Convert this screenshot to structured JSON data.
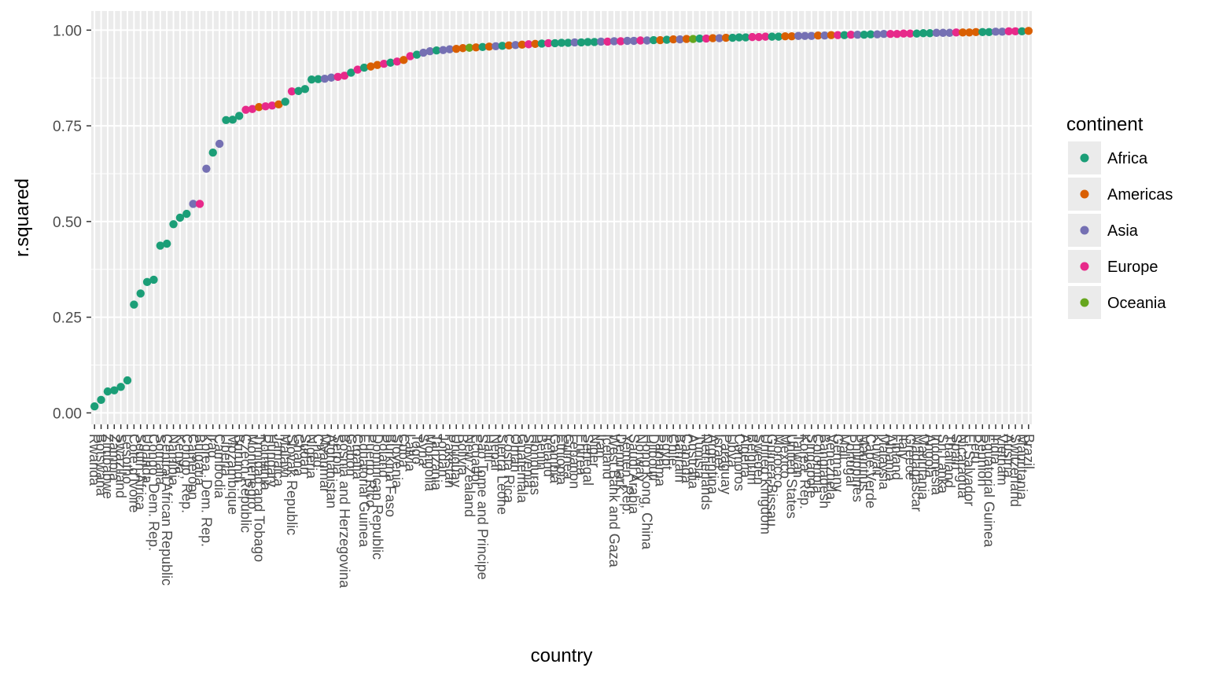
{
  "chart_data": {
    "type": "scatter",
    "xlabel": "country",
    "ylabel": "r.squared",
    "ylim": [
      -0.03,
      1.05
    ],
    "y_ticks": [
      "0.00",
      "0.25",
      "0.50",
      "0.75",
      "1.00"
    ],
    "grid": true,
    "legend": {
      "title": "continent",
      "placement": "right",
      "entries": [
        {
          "name": "Africa",
          "color": "#1b9e77"
        },
        {
          "name": "Americas",
          "color": "#d95f02"
        },
        {
          "name": "Asia",
          "color": "#7570b3"
        },
        {
          "name": "Europe",
          "color": "#e7298a"
        },
        {
          "name": "Oceania",
          "color": "#66a61e"
        }
      ]
    },
    "points": [
      {
        "country": "Rwanda",
        "continent": "Africa",
        "y": 0.017
      },
      {
        "country": "Botswana",
        "continent": "Africa",
        "y": 0.034
      },
      {
        "country": "Zimbabwe",
        "continent": "Africa",
        "y": 0.056
      },
      {
        "country": "Zambia",
        "continent": "Africa",
        "y": 0.059
      },
      {
        "country": "Swaziland",
        "continent": "Africa",
        "y": 0.068
      },
      {
        "country": "Lesotho",
        "continent": "Africa",
        "y": 0.085
      },
      {
        "country": "Cote d'Ivoire",
        "continent": "Africa",
        "y": 0.283
      },
      {
        "country": "South Africa",
        "continent": "Africa",
        "y": 0.312
      },
      {
        "country": "Uganda",
        "continent": "Africa",
        "y": 0.342
      },
      {
        "country": "Congo, Dem. Rep.",
        "continent": "Africa",
        "y": 0.348
      },
      {
        "country": "Somalia",
        "continent": "Africa",
        "y": 0.437
      },
      {
        "country": "Central African Republic",
        "continent": "Africa",
        "y": 0.442
      },
      {
        "country": "Namibia",
        "continent": "Africa",
        "y": 0.493
      },
      {
        "country": "Kenya",
        "continent": "Africa",
        "y": 0.51
      },
      {
        "country": "Congo, Rep.",
        "continent": "Africa",
        "y": 0.52
      },
      {
        "country": "Cameroon",
        "continent": "Asia",
        "y": 0.546
      },
      {
        "country": "Bulgaria",
        "continent": "Europe",
        "y": 0.546
      },
      {
        "country": "Korea, Dem. Rep.",
        "continent": "Asia",
        "y": 0.638
      },
      {
        "country": "Iraq",
        "continent": "Africa",
        "y": 0.68
      },
      {
        "country": "Cambodia",
        "continent": "Asia",
        "y": 0.703
      },
      {
        "country": "Liberia",
        "continent": "Africa",
        "y": 0.765
      },
      {
        "country": "Mozambique",
        "continent": "Africa",
        "y": 0.766
      },
      {
        "country": "Burundi",
        "continent": "Africa",
        "y": 0.776
      },
      {
        "country": "Czech Republic",
        "continent": "Europe",
        "y": 0.792
      },
      {
        "country": "Montenegro",
        "continent": "Europe",
        "y": 0.794
      },
      {
        "country": "Trinidad and Tobago",
        "continent": "Americas",
        "y": 0.799
      },
      {
        "country": "Romania",
        "continent": "Europe",
        "y": 0.801
      },
      {
        "country": "Hungary",
        "continent": "Europe",
        "y": 0.803
      },
      {
        "country": "Jamaica",
        "continent": "Americas",
        "y": 0.806
      },
      {
        "country": "Malawi",
        "continent": "Africa",
        "y": 0.813
      },
      {
        "country": "Slovak Republic",
        "continent": "Europe",
        "y": 0.84
      },
      {
        "country": "Ghana",
        "continent": "Africa",
        "y": 0.841
      },
      {
        "country": "Sudan",
        "continent": "Africa",
        "y": 0.846
      },
      {
        "country": "Nigeria",
        "continent": "Africa",
        "y": 0.871
      },
      {
        "country": "Chad",
        "continent": "Africa",
        "y": 0.872
      },
      {
        "country": "Myanmar",
        "continent": "Asia",
        "y": 0.873
      },
      {
        "country": "Afghanistan",
        "continent": "Asia",
        "y": 0.876
      },
      {
        "country": "Serbia",
        "continent": "Europe",
        "y": 0.878
      },
      {
        "country": "Bosnia and Herzegovina",
        "continent": "Europe",
        "y": 0.881
      },
      {
        "country": "Gabon",
        "continent": "Africa",
        "y": 0.889
      },
      {
        "country": "Croatia",
        "continent": "Europe",
        "y": 0.897
      },
      {
        "country": "Equatorial Guinea",
        "continent": "Africa",
        "y": 0.902
      },
      {
        "country": "Puerto Rico",
        "continent": "Americas",
        "y": 0.905
      },
      {
        "country": "Dominican Republic",
        "continent": "Americas",
        "y": 0.909
      },
      {
        "country": "Poland",
        "continent": "Europe",
        "y": 0.912
      },
      {
        "country": "Burkina Faso",
        "continent": "Africa",
        "y": 0.915
      },
      {
        "country": "Slovenia",
        "continent": "Europe",
        "y": 0.918
      },
      {
        "country": "Cuba",
        "continent": "Americas",
        "y": 0.922
      },
      {
        "country": "Latvia",
        "continent": "Europe",
        "y": 0.932
      },
      {
        "country": "Togo",
        "continent": "Africa",
        "y": 0.936
      },
      {
        "country": "Syria",
        "continent": "Asia",
        "y": 0.941
      },
      {
        "country": "Mongolia",
        "continent": "Asia",
        "y": 0.945
      },
      {
        "country": "Tanzania",
        "continent": "Africa",
        "y": 0.947
      },
      {
        "country": "Jordan",
        "continent": "Asia",
        "y": 0.948
      },
      {
        "country": "Pakistan",
        "continent": "Asia",
        "y": 0.95
      },
      {
        "country": "Uruguay",
        "continent": "Americas",
        "y": 0.951
      },
      {
        "country": "Bolivia",
        "continent": "Americas",
        "y": 0.953
      },
      {
        "country": "New Zealand",
        "continent": "Oceania",
        "y": 0.954
      },
      {
        "country": "Ecuador",
        "continent": "Americas",
        "y": 0.955
      },
      {
        "country": "Sao Tome and Principe",
        "continent": "Africa",
        "y": 0.956
      },
      {
        "country": "Haiti",
        "continent": "Americas",
        "y": 0.957
      },
      {
        "country": "Nepal",
        "continent": "Asia",
        "y": 0.958
      },
      {
        "country": "Sierra Leone",
        "continent": "Africa",
        "y": 0.959
      },
      {
        "country": "Costa Rica",
        "continent": "Americas",
        "y": 0.96
      },
      {
        "country": "Oman",
        "continent": "Asia",
        "y": 0.961
      },
      {
        "country": "Guatemala",
        "continent": "Americas",
        "y": 0.962
      },
      {
        "country": "Slovenia",
        "continent": "Europe",
        "y": 0.963
      },
      {
        "country": "Honduras",
        "continent": "Americas",
        "y": 0.964
      },
      {
        "country": "Benin",
        "continent": "Africa",
        "y": 0.965
      },
      {
        "country": "Ireland",
        "continent": "Europe",
        "y": 0.966
      },
      {
        "country": "Gambia",
        "continent": "Africa",
        "y": 0.966
      },
      {
        "country": "Ethiopia",
        "continent": "Africa",
        "y": 0.967
      },
      {
        "country": "Guinea",
        "continent": "Africa",
        "y": 0.967
      },
      {
        "country": "Lebanon",
        "continent": "Asia",
        "y": 0.968
      },
      {
        "country": "Eritrea",
        "continent": "Africa",
        "y": 0.968
      },
      {
        "country": "Senegal",
        "continent": "Africa",
        "y": 0.969
      },
      {
        "country": "Niger",
        "continent": "Africa",
        "y": 0.969
      },
      {
        "country": "Iran",
        "continent": "Asia",
        "y": 0.97
      },
      {
        "country": "Iceland",
        "continent": "Europe",
        "y": 0.97
      },
      {
        "country": "West Bank and Gaza",
        "continent": "Asia",
        "y": 0.971
      },
      {
        "country": "Denmark",
        "continent": "Europe",
        "y": 0.971
      },
      {
        "country": "Yemen, Rep.",
        "continent": "Asia",
        "y": 0.972
      },
      {
        "country": "Saudi Arabia",
        "continent": "Asia",
        "y": 0.972
      },
      {
        "country": "Norway",
        "continent": "Europe",
        "y": 0.973
      },
      {
        "country": "Hong Kong, China",
        "continent": "Asia",
        "y": 0.973
      },
      {
        "country": "Djibouti",
        "continent": "Africa",
        "y": 0.974
      },
      {
        "country": "Panama",
        "continent": "Americas",
        "y": 0.974
      },
      {
        "country": "Egypt",
        "continent": "Africa",
        "y": 0.975
      },
      {
        "country": "Chile",
        "continent": "Americas",
        "y": 0.976
      },
      {
        "country": "Bahrain",
        "continent": "Asia",
        "y": 0.976
      },
      {
        "country": "Canada",
        "continent": "Americas",
        "y": 0.977
      },
      {
        "country": "Australia",
        "continent": "Oceania",
        "y": 0.977
      },
      {
        "country": "Tunisia",
        "continent": "Africa",
        "y": 0.978
      },
      {
        "country": "Netherlands",
        "continent": "Europe",
        "y": 0.978
      },
      {
        "country": "Argentina",
        "continent": "Americas",
        "y": 0.979
      },
      {
        "country": "Israel",
        "continent": "Asia",
        "y": 0.979
      },
      {
        "country": "Paraguay",
        "continent": "Americas",
        "y": 0.98
      },
      {
        "country": "Libya",
        "continent": "Africa",
        "y": 0.98
      },
      {
        "country": "Comoros",
        "continent": "Africa",
        "y": 0.981
      },
      {
        "country": "Algeria",
        "continent": "Africa",
        "y": 0.981
      },
      {
        "country": "Belgium",
        "continent": "Europe",
        "y": 0.982
      },
      {
        "country": "Sweden",
        "continent": "Europe",
        "y": 0.982
      },
      {
        "country": "United Kingdom",
        "continent": "Europe",
        "y": 0.983
      },
      {
        "country": "Guinea-Bissau",
        "continent": "Africa",
        "y": 0.983
      },
      {
        "country": "Morocco",
        "continent": "Africa",
        "y": 0.983
      },
      {
        "country": "Mexico",
        "continent": "Americas",
        "y": 0.984
      },
      {
        "country": "United States",
        "continent": "Americas",
        "y": 0.984
      },
      {
        "country": "Taiwan",
        "continent": "Asia",
        "y": 0.985
      },
      {
        "country": "Korea, Rep.",
        "continent": "Asia",
        "y": 0.985
      },
      {
        "country": "Singapore",
        "continent": "Asia",
        "y": 0.985
      },
      {
        "country": "Colombia",
        "continent": "Americas",
        "y": 0.986
      },
      {
        "country": "Bangladesh",
        "continent": "Asia",
        "y": 0.986
      },
      {
        "country": "Venezuela",
        "continent": "Americas",
        "y": 0.987
      },
      {
        "country": "Germany",
        "continent": "Europe",
        "y": 0.987
      },
      {
        "country": "Mali",
        "continent": "Africa",
        "y": 0.987
      },
      {
        "country": "Portugal",
        "continent": "Europe",
        "y": 0.988
      },
      {
        "country": "Philippines",
        "continent": "Asia",
        "y": 0.988
      },
      {
        "country": "Mauritius",
        "continent": "Africa",
        "y": 0.988
      },
      {
        "country": "Cape Verde",
        "continent": "Africa",
        "y": 0.989
      },
      {
        "country": "Kuwait",
        "continent": "Asia",
        "y": 0.989
      },
      {
        "country": "Malaysia",
        "continent": "Asia",
        "y": 0.99
      },
      {
        "country": "Albania",
        "continent": "Europe",
        "y": 0.99
      },
      {
        "country": "Finland",
        "continent": "Europe",
        "y": 0.99
      },
      {
        "country": "Italy",
        "continent": "Europe",
        "y": 0.991
      },
      {
        "country": "Greece",
        "continent": "Europe",
        "y": 0.991
      },
      {
        "country": "Madagascar",
        "continent": "Africa",
        "y": 0.991
      },
      {
        "country": "Mauritania",
        "continent": "Africa",
        "y": 0.992
      },
      {
        "country": "Angola",
        "continent": "Africa",
        "y": 0.992
      },
      {
        "country": "Indonesia",
        "continent": "Asia",
        "y": 0.993
      },
      {
        "country": "Sri Lanka",
        "continent": "Asia",
        "y": 0.993
      },
      {
        "country": "Thailand",
        "continent": "Asia",
        "y": 0.993
      },
      {
        "country": "Spain",
        "continent": "Europe",
        "y": 0.994
      },
      {
        "country": "Nicaragua",
        "continent": "Americas",
        "y": 0.994
      },
      {
        "country": "El Salvador",
        "continent": "Americas",
        "y": 0.994
      },
      {
        "country": "Peru",
        "continent": "Americas",
        "y": 0.995
      },
      {
        "country": "Reunion",
        "continent": "Africa",
        "y": 0.995
      },
      {
        "country": "Equatorial Guinea",
        "continent": "Africa",
        "y": 0.995
      },
      {
        "country": "India",
        "continent": "Asia",
        "y": 0.996
      },
      {
        "country": "Vietnam",
        "continent": "Asia",
        "y": 0.996
      },
      {
        "country": "Austria",
        "continent": "Europe",
        "y": 0.997
      },
      {
        "country": "Switzerland",
        "continent": "Europe",
        "y": 0.997
      },
      {
        "country": "Mauritania",
        "continent": "Africa",
        "y": 0.997
      },
      {
        "country": "Brazil",
        "continent": "Americas",
        "y": 0.998
      }
    ],
    "x_labels_visible": [
      "Rwanda",
      "Botswana",
      "Zimbabwe",
      "Zambia",
      "Swaziland",
      "Lesotho",
      "Cote d'Ivoire",
      "South Africa",
      "Uganda",
      "Congo, Dem. Rep.",
      "Somalia",
      "Central African Republic",
      "Namibia",
      "Kenya",
      "Congo, Rep.",
      "Cameroon",
      "Bulgaria",
      "Korea, Dem. Rep.",
      "Iraq",
      "Cambodia",
      "Liberia",
      "Mozambique",
      "Burundi",
      "Czech Republic",
      "Montenegro",
      "Trinidad and Tobago",
      "Romania",
      "Hungary",
      "Jamaica",
      "Malawi",
      "Slovak Republic",
      "Ghana",
      "Sudan",
      "Nigeria",
      "Chad",
      "Myanmar",
      "Afghanistan",
      "Serbia",
      "Bosnia and Herzegovina",
      "Gabon",
      "Croatia",
      "Equatorial Guinea",
      "Puerto Rico",
      "Dominican Republic",
      "Poland",
      "Burkina Faso",
      "Slovenia",
      "Cuba",
      "Latvia",
      "Togo",
      "Syria",
      "Mongolia",
      "Tanzania",
      "Jordan",
      "Pakistan",
      "Uruguay",
      "Bolivia",
      "New Zealand",
      "Ecuador",
      "Sao Tome and Principe",
      "Haiti",
      "Nepal",
      "Sierra Leone",
      "Costa Rica",
      "Oman",
      "Guatemala",
      "Slovenia",
      "Honduras",
      "Benin",
      "Ireland",
      "Gambia",
      "Ethiopia",
      "Guinea",
      "Lebanon",
      "Eritrea",
      "Senegal",
      "Niger",
      "Iran",
      "Iceland",
      "West Bank and Gaza",
      "Denmark",
      "Yemen, Rep.",
      "Saudi Arabia",
      "Norway",
      "Hong Kong, China",
      "Djibouti",
      "Panama",
      "Egypt",
      "Chile",
      "Bahrain",
      "Canada",
      "Australia",
      "Tunisia",
      "Netherlands",
      "Argentina",
      "Israel",
      "Paraguay",
      "Libya",
      "Comoros",
      "Algeria",
      "Belgium",
      "Sweden",
      "United Kingdom",
      "Guinea-Bissau",
      "Morocco",
      "Mexico",
      "United States",
      "Taiwan",
      "Korea, Rep.",
      "Singapore",
      "Colombia",
      "Bangladesh",
      "Venezuela",
      "Germany",
      "Mali",
      "Portugal",
      "Philippines",
      "Mauritius",
      "Cape Verde",
      "Kuwait",
      "Malaysia",
      "Albania",
      "Finland",
      "Italy",
      "Greece",
      "Madagascar",
      "Mauritania",
      "Angola",
      "Indonesia",
      "Sri Lanka",
      "Thailand",
      "Spain",
      "Nicaragua",
      "El Salvador",
      "Peru",
      "Reunion",
      "Equatorial Guinea",
      "India",
      "Vietnam",
      "Austria",
      "Switzerland",
      "Mauritania",
      "Brazil"
    ]
  }
}
